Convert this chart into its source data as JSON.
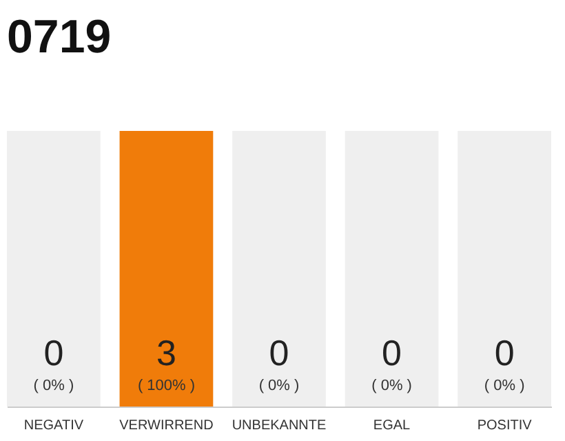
{
  "chart_data": {
    "type": "bar",
    "title": "0719",
    "categories": [
      "NEGATIV",
      "VERWIRREND",
      "UNBEKANNTE",
      "EGAL",
      "POSITIV"
    ],
    "series": [
      {
        "color": "#f07c0a",
        "values": [
          0,
          3,
          0,
          0,
          0
        ]
      }
    ],
    "ylim": [
      0,
      3
    ],
    "data_labels": true,
    "tick_labels": "x",
    "bands": [
      {
        "axis": "x",
        "from": "NEGATIV",
        "to": "NEGATIV",
        "color": "#efefef"
      },
      {
        "axis": "x",
        "from": "UNBEKANNTE",
        "to": "UNBEKANNTE",
        "color": "#efefef"
      },
      {
        "axis": "x",
        "from": "EGAL",
        "to": "EGAL",
        "color": "#efefef"
      },
      {
        "axis": "x",
        "from": "POSITIV",
        "to": "POSITIV",
        "color": "#efefef"
      }
    ],
    "annotations": [
      {
        "text": "( 0% )",
        "x": "NEGATIV",
        "y": 0
      },
      {
        "text": "( 100% )",
        "x": "VERWIRREND",
        "y": 0
      },
      {
        "text": "( 0% )",
        "x": "UNBEKANNTE",
        "y": 0
      },
      {
        "text": "( 0% )",
        "x": "EGAL",
        "y": 0
      },
      {
        "text": "( 0% )",
        "x": "POSITIV",
        "y": 0
      }
    ]
  }
}
